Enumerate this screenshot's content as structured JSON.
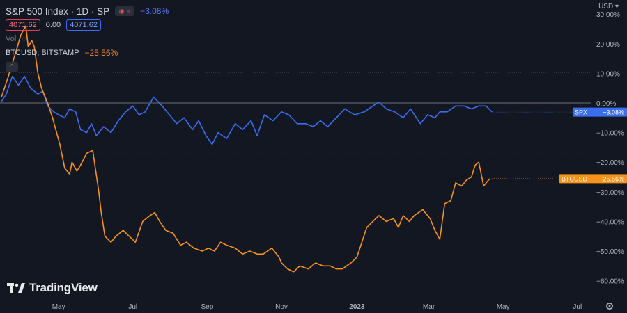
{
  "header": {
    "symbol_title": "S&P 500 Index · 1D · SP",
    "main_change": "−3.08%",
    "price_red": "4071.62",
    "price_change": "0.00",
    "price_blue": "4071.62",
    "vol_label": "Vol",
    "compare_symbol": "BTCUSD, BITSTAMP",
    "compare_change": "−25.56%"
  },
  "currency": "USD",
  "watermark": "TradingView",
  "colors": {
    "background": "#131722",
    "spx": "#3a6df0",
    "btc": "#f7931a",
    "grid": "#2a2e39"
  },
  "chart_data": {
    "type": "line",
    "ylabel": "",
    "y_ticks": [
      "30.00%",
      "20.00%",
      "10.00%",
      "0.00%",
      "−10.00%",
      "−20.00%",
      "−30.00%",
      "−40.00%",
      "−50.00%",
      "−60.00%"
    ],
    "y_tick_values": [
      30,
      20,
      10,
      0,
      -10,
      -20,
      -30,
      -40,
      -50,
      -60
    ],
    "ylim": [
      -65,
      35
    ],
    "x_tick_labels": [
      "May",
      "Jul",
      "Sep",
      "Nov",
      "2023",
      "Mar",
      "May",
      "Jul"
    ],
    "x_tick_days": [
      47,
      108,
      169,
      230,
      292,
      351,
      412,
      473
    ],
    "x_range_days": [
      0,
      500
    ],
    "series": [
      {
        "name": "SPX",
        "end_label": "−3.08%",
        "days": [
          0,
          4,
          9,
          14,
          19,
          24,
          30,
          34,
          38,
          43,
          47,
          52,
          56,
          61,
          65,
          70,
          74,
          78,
          84,
          90,
          96,
          102,
          108,
          113,
          118,
          125,
          132,
          138,
          144,
          150,
          157,
          162,
          168,
          173,
          178,
          185,
          192,
          198,
          205,
          210,
          216,
          223,
          230,
          236,
          243,
          250,
          256,
          262,
          268,
          275,
          282,
          290,
          298,
          305,
          310,
          316,
          323,
          330,
          336,
          344,
          350,
          356,
          360,
          366,
          373,
          380,
          386,
          392,
          398,
          403
        ],
        "values": [
          0.5,
          3,
          9,
          6,
          9,
          5,
          3,
          4,
          -1,
          -3,
          -4,
          -5,
          -2,
          -3,
          -9,
          -10,
          -7,
          -11,
          -8,
          -10,
          -6,
          -3,
          -1,
          -4,
          -3,
          2,
          -1,
          -4,
          -7,
          -5,
          -9,
          -6,
          -11,
          -14,
          -10,
          -12,
          -7,
          -9,
          -6,
          -11,
          -4,
          -6,
          -3,
          -4,
          -7,
          -7,
          -8,
          -6,
          -8,
          -5,
          -2,
          -4,
          -3,
          -1,
          0.3,
          -2,
          -3,
          -5,
          -2,
          -7,
          -4,
          -5,
          -3,
          -3,
          -1,
          -1,
          -2,
          -1,
          -1,
          -3.08
        ],
        "color": "#3a6df0"
      },
      {
        "name": "BTCUSD",
        "end_label": "−25.56%",
        "days": [
          0,
          5,
          11,
          16,
          20,
          22,
          25,
          27,
          30,
          33,
          38,
          42,
          48,
          52,
          56,
          58,
          62,
          65,
          70,
          75,
          80,
          82,
          85,
          90,
          94,
          97,
          100,
          105,
          110,
          116,
          122,
          126,
          130,
          135,
          141,
          147,
          152,
          158,
          165,
          170,
          175,
          180,
          185,
          192,
          198,
          204,
          210,
          215,
          222,
          228,
          230,
          235,
          240,
          245,
          252,
          258,
          264,
          270,
          275,
          280,
          287,
          292,
          296,
          300,
          305,
          310,
          316,
          322,
          326,
          330,
          335,
          339,
          346,
          352,
          356,
          360,
          364,
          369,
          373,
          378,
          382,
          386,
          389,
          392,
          396,
          401
        ],
        "values": [
          2,
          8,
          16,
          23,
          26,
          19,
          21,
          19,
          10,
          5,
          0,
          -5,
          -14,
          -22,
          -24,
          -20,
          -23,
          -21,
          -17,
          -16,
          -30,
          -37,
          -45,
          -47,
          -45,
          -44,
          -43,
          -45,
          -47,
          -40,
          -38,
          -37,
          -40,
          -43,
          -44,
          -48,
          -47,
          -49,
          -50,
          -49,
          -50,
          -47,
          -48,
          -49,
          -51,
          -50,
          -51,
          -51,
          -49,
          -52,
          -54,
          -56,
          -57,
          -55,
          -56,
          -54,
          -55,
          -55,
          -56,
          -56,
          -54,
          -52,
          -47,
          -42,
          -40,
          -38,
          -40,
          -39,
          -42,
          -38,
          -40,
          -38,
          -36,
          -39,
          -43,
          -46,
          -34,
          -33,
          -27,
          -28,
          -26,
          -25,
          -21,
          -20,
          -28,
          -25.56
        ],
        "color": "#f7931a"
      }
    ],
    "grid": false,
    "legend": "top-left"
  }
}
